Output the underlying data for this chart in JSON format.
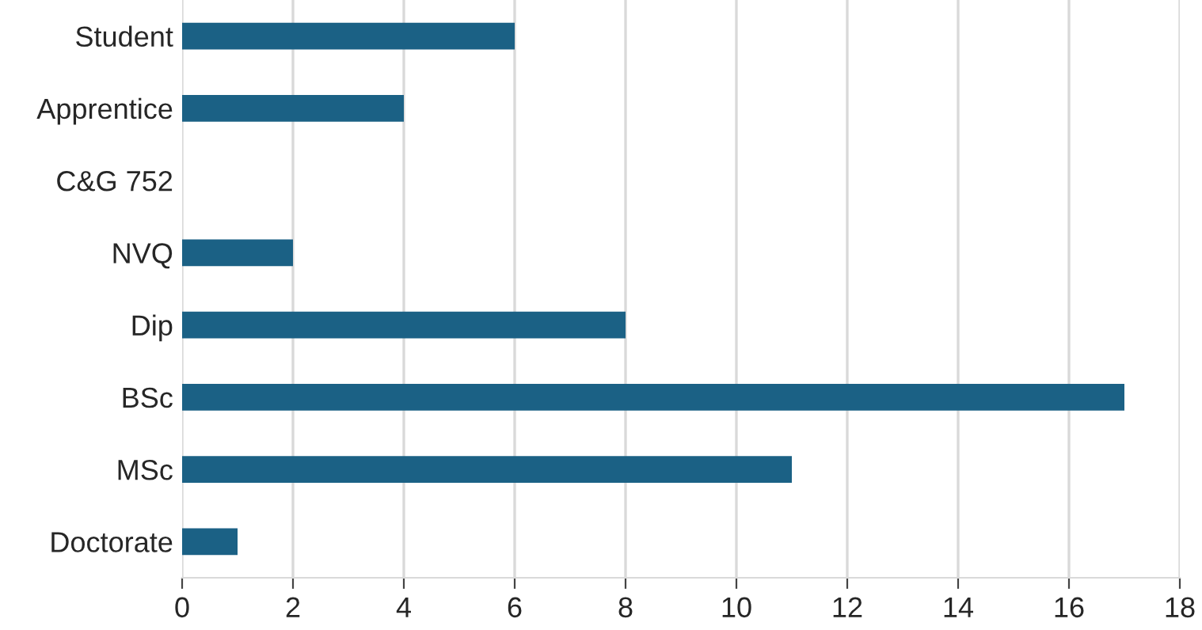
{
  "chart_data": {
    "type": "bar",
    "orientation": "horizontal",
    "categories": [
      "Student",
      "Apprentice",
      "C&G 752",
      "NVQ",
      "Dip",
      "BSc",
      "MSc",
      "Doctorate"
    ],
    "values": [
      6,
      4,
      0,
      2,
      8,
      17,
      11,
      1
    ],
    "color": "#1b6185",
    "xlim": [
      0,
      18
    ],
    "xticks": [
      0,
      2,
      4,
      6,
      8,
      10,
      12,
      14,
      16,
      18
    ],
    "grid": "x",
    "legend": false
  }
}
